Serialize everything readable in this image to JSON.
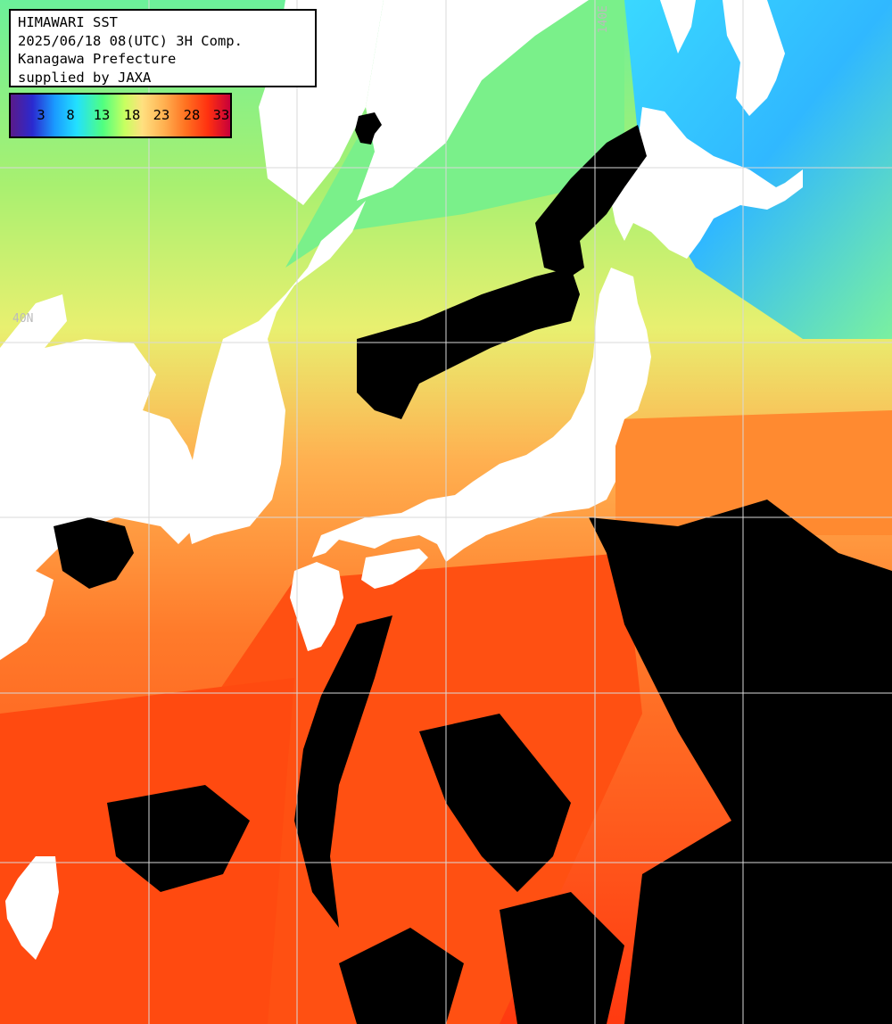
{
  "header": {
    "line1": "HIMAWARI SST",
    "line2": "2025/06/18 08(UTC) 3H Comp.",
    "line3": "Kanagawa Prefecture",
    "line4": "supplied by JAXA"
  },
  "legend": {
    "ticks": [
      "3",
      "8",
      "13",
      "18",
      "23",
      "28",
      "33"
    ]
  },
  "grid_labels": {
    "lon": "140E",
    "lat": "40N"
  },
  "colors": {
    "land": "#ffffff",
    "cloud": "#000000",
    "grid": "#d0d0d0",
    "cold": "#30c0ff",
    "cool": "#70ff80",
    "mild": "#e8f070",
    "warm": "#ffb050",
    "hot": "#ff5a10"
  }
}
